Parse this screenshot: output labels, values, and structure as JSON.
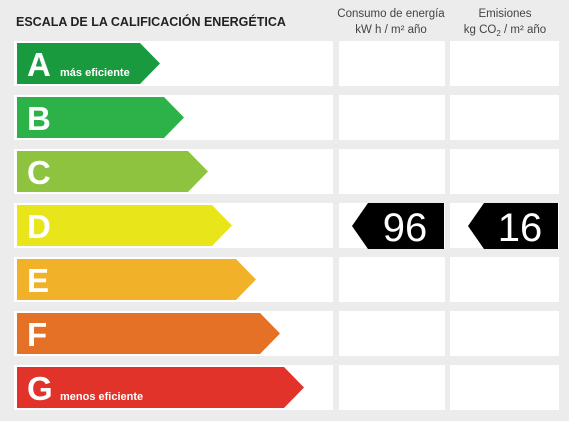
{
  "header": {
    "title": "ESCALA DE LA CALIFICACIÓN ENERGÉTICA",
    "consumption": {
      "line1": "Consumo de energía",
      "line2": "kW h  / m² año"
    },
    "emissions": {
      "line1": "Emisiones",
      "line2": [
        "kg CO",
        "2",
        " / m² año"
      ]
    }
  },
  "rows": [
    {
      "letter": "A",
      "note": "más eficiente",
      "color": "#1a9a3f"
    },
    {
      "letter": "B",
      "color": "#2db24a"
    },
    {
      "letter": "C",
      "color": "#8dc33f"
    },
    {
      "letter": "D",
      "color": "#e8e51b",
      "consumption": "96",
      "emissions": "16"
    },
    {
      "letter": "E",
      "color": "#f1b129"
    },
    {
      "letter": "F",
      "color": "#e47125"
    },
    {
      "letter": "G",
      "note": "menos eficiente",
      "color": "#e1332a"
    }
  ]
}
